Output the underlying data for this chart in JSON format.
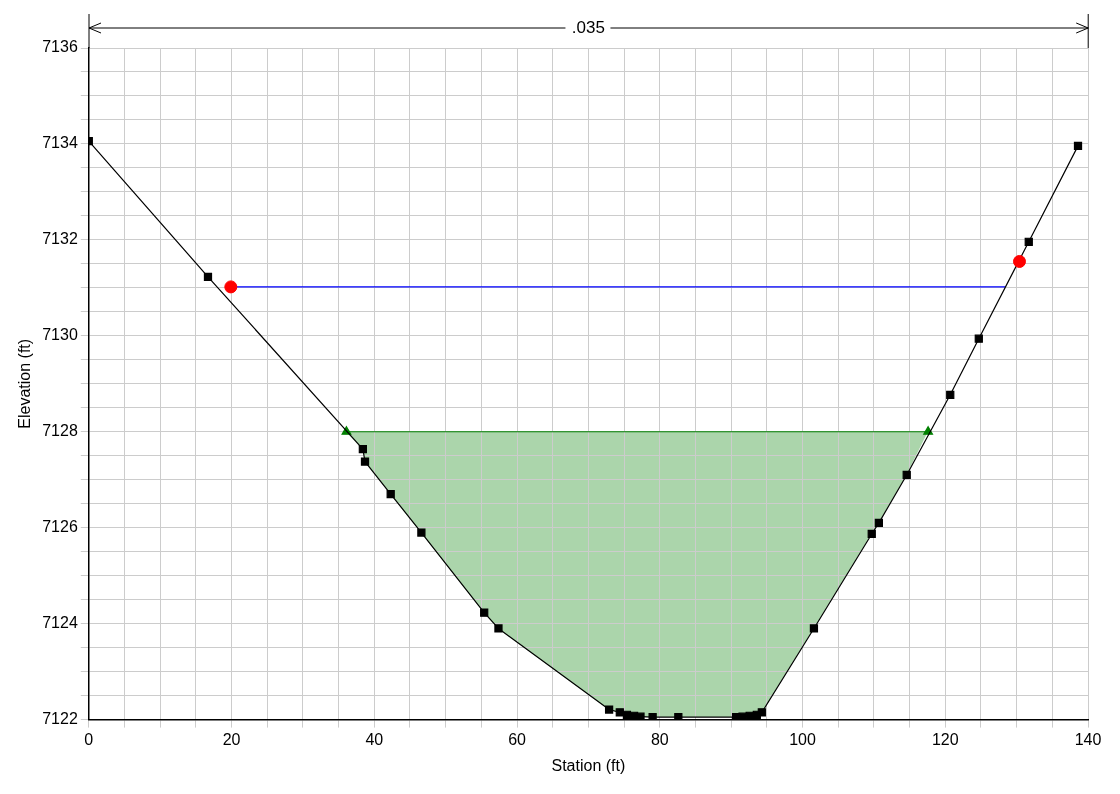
{
  "chart_data": {
    "type": "line",
    "xlabel": "Station (ft)",
    "ylabel": "Elevation (ft)",
    "annotations": [
      ".035"
    ],
    "xlim": [
      0,
      140
    ],
    "ylim": [
      7122,
      7136
    ],
    "xticks": [
      0,
      {
        "value": 5,
        "label": null
      },
      {
        "value": 10,
        "label": null
      },
      {
        "value": 15,
        "label": null
      },
      20,
      {
        "value": 25,
        "label": null
      },
      {
        "value": 30,
        "label": null
      },
      {
        "value": 35,
        "label": null
      },
      40,
      {
        "value": 45,
        "label": null
      },
      {
        "value": 50,
        "label": null
      },
      {
        "value": 55,
        "label": null
      },
      60,
      {
        "value": 65,
        "label": null
      },
      {
        "value": 70,
        "label": null
      },
      {
        "value": 75,
        "label": null
      },
      80,
      {
        "value": 85,
        "label": null
      },
      {
        "value": 90,
        "label": null
      },
      {
        "value": 95,
        "label": null
      },
      100,
      {
        "value": 105,
        "label": null
      },
      {
        "value": 110,
        "label": null
      },
      {
        "value": 115,
        "label": null
      },
      120,
      {
        "value": 125,
        "label": null
      },
      {
        "value": 130,
        "label": null
      },
      {
        "value": 135,
        "label": null
      },
      140
    ],
    "yticks": [
      7122,
      {
        "value": 7122.5,
        "label": null
      },
      {
        "value": 7123,
        "label": null
      },
      {
        "value": 7123.5,
        "label": null
      },
      7124,
      {
        "value": 7124.5,
        "label": null
      },
      {
        "value": 7125,
        "label": null
      },
      {
        "value": 7125.5,
        "label": null
      },
      7126,
      {
        "value": 7126.5,
        "label": null
      },
      {
        "value": 7127,
        "label": null
      },
      {
        "value": 7127.5,
        "label": null
      },
      7128,
      {
        "value": 7128.5,
        "label": null
      },
      {
        "value": 7129,
        "label": null
      },
      {
        "value": 7129.5,
        "label": null
      },
      7130,
      {
        "value": 7130.5,
        "label": null
      },
      {
        "value": 7131,
        "label": null
      },
      {
        "value": 7131.5,
        "label": null
      },
      7132,
      {
        "value": 7132.5,
        "label": null
      },
      {
        "value": 7133,
        "label": null
      },
      {
        "value": 7133.5,
        "label": null
      },
      7134,
      {
        "value": 7134.5,
        "label": null
      },
      {
        "value": 7135,
        "label": null
      },
      {
        "value": 7135.5,
        "label": null
      },
      7136
    ],
    "grid": true,
    "series": [
      {
        "color": "#000000",
        "marker": "square",
        "x": [
          0,
          16.7,
          38.4,
          38.7,
          42.3,
          46.6,
          55.4,
          57.4,
          72.9,
          74.4,
          75.4,
          76.4,
          77.3,
          79.0,
          82.6,
          90.7,
          91.6,
          92.6,
          93.6,
          94.3,
          101.6,
          109.7,
          110.7,
          114.6,
          120.7,
          124.7,
          131.7,
          138.6
        ],
        "values": [
          7134.06,
          7131.23,
          7127.64,
          7127.38,
          7126.7,
          7125.9,
          7124.23,
          7123.9,
          7122.21,
          7122.15,
          7122.1,
          7122.08,
          7122.06,
          7122.05,
          7122.05,
          7122.05,
          7122.06,
          7122.08,
          7122.1,
          7122.15,
          7123.9,
          7125.87,
          7126.1,
          7127.1,
          7128.77,
          7129.94,
          7131.96,
          7133.96
        ]
      },
      {
        "color": "#0000ff",
        "marker": "none",
        "x": [
          19.9,
          128.4
        ],
        "values": [
          7131.02,
          7131.02
        ]
      },
      {
        "color": "#008000",
        "marker": "triangle",
        "x": [
          36.1,
          117.6
        ],
        "values": [
          7128,
          7128
        ]
      },
      {
        "type": "scatter",
        "color": "#ff0000",
        "marker": "circle",
        "x": [
          19.9,
          130.4
        ],
        "values": [
          7131.02,
          7131.55
        ]
      }
    ]
  }
}
